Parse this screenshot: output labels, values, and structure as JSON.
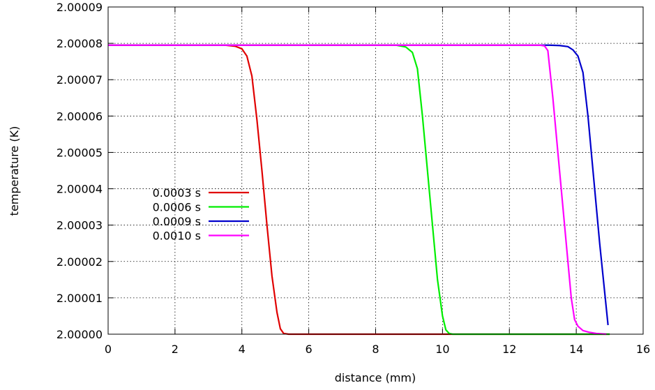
{
  "chart_data": {
    "type": "line",
    "xlabel": "distance (mm)",
    "ylabel": "temperature (K)",
    "xlim": [
      0,
      16
    ],
    "ylim": [
      2.0,
      2.00009
    ],
    "x_ticks": [
      "0",
      "2",
      "4",
      "6",
      "8",
      "10",
      "12",
      "14",
      "16"
    ],
    "y_ticks": [
      "2.00000",
      "2.00001",
      "2.00002",
      "2.00003",
      "2.00004",
      "2.00005",
      "2.00006",
      "2.00007",
      "2.00008",
      "2.00009"
    ],
    "grid": true,
    "legend_position": "bottom-left",
    "series": [
      {
        "name": "0.0003 s",
        "color": "#e00000",
        "x": [
          0,
          3.5,
          3.8,
          4.0,
          4.15,
          4.3,
          4.45,
          4.6,
          4.75,
          4.9,
          5.05,
          5.15,
          5.25,
          5.4,
          15
        ],
        "y": [
          2.0000795,
          2.0000795,
          2.0000792,
          2.0000785,
          2.0000765,
          2.000071,
          2.000059,
          2.000045,
          2.00003,
          2.000016,
          2.000006,
          2.0000015,
          2.0000002,
          2.0,
          2.0
        ]
      },
      {
        "name": "0.0006 s",
        "color": "#00ee00",
        "x": [
          0,
          8.6,
          8.9,
          9.1,
          9.25,
          9.4,
          9.55,
          9.7,
          9.85,
          10.0,
          10.1,
          10.2,
          10.3,
          15
        ],
        "y": [
          2.0000795,
          2.0000795,
          2.000079,
          2.0000775,
          2.000073,
          2.00006,
          2.000045,
          2.00003,
          2.000015,
          2.000005,
          2.0000012,
          2.0000002,
          2.0,
          2.0
        ]
      },
      {
        "name": "0.0009 s",
        "color": "#0000cc",
        "x": [
          0,
          13.2,
          13.5,
          13.75,
          13.9,
          14.05,
          14.2,
          14.35,
          14.5,
          14.6,
          14.7,
          14.8,
          14.9,
          14.95
        ],
        "y": [
          2.0000795,
          2.0000795,
          2.0000794,
          2.0000791,
          2.0000782,
          2.0000765,
          2.000072,
          2.00006,
          2.000045,
          2.000035,
          2.000025,
          2.000016,
          2.000007,
          2.0000025
        ]
      },
      {
        "name": "0.0010 s",
        "color": "#ff00ff",
        "x": [
          0,
          12.9,
          13.05,
          13.15,
          13.3,
          13.45,
          13.6,
          13.75,
          13.85,
          13.95,
          14.05,
          14.2,
          14.4,
          14.6,
          14.9
        ],
        "y": [
          2.0000795,
          2.0000795,
          2.0000793,
          2.000078,
          2.000065,
          2.00005,
          2.000035,
          2.00002,
          2.00001,
          2.000004,
          2.0000022,
          2.000001,
          2.0000005,
          2.0000002,
          2.0
        ]
      }
    ]
  }
}
